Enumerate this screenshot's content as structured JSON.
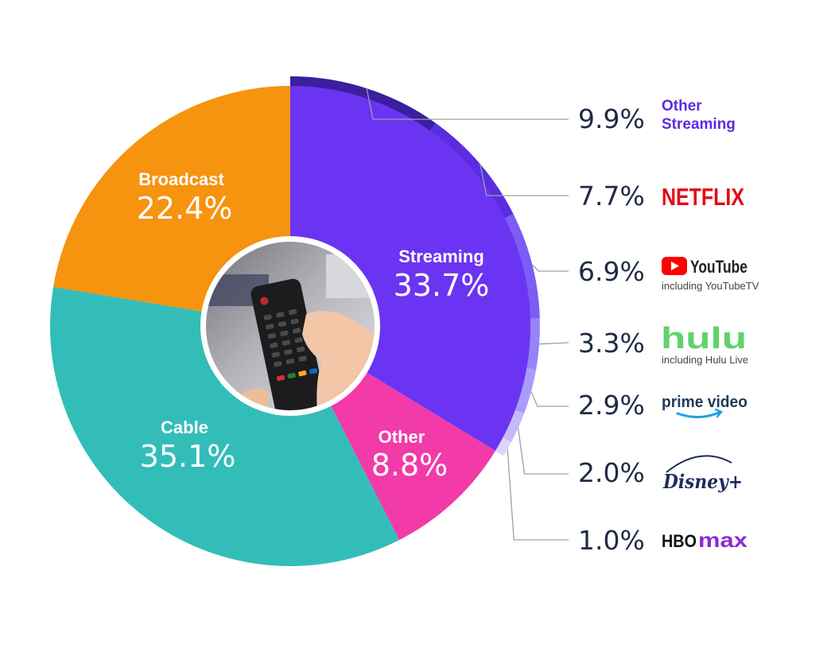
{
  "chart_data": {
    "type": "pie",
    "categories": [
      "Streaming",
      "Other",
      "Cable",
      "Broadcast"
    ],
    "values": [
      33.7,
      8.8,
      35.1,
      22.4
    ],
    "labels": [
      "33.7%",
      "8.8%",
      "35.1%",
      "22.4%"
    ],
    "colors": [
      "#6b34f2",
      "#f23aa8",
      "#33bdb9",
      "#f6930f"
    ],
    "donut": true,
    "breakdown": {
      "of": "Streaming",
      "categories": [
        "Other Streaming",
        "Netflix",
        "YouTube",
        "Hulu",
        "Prime Video",
        "Disney+",
        "HBO Max"
      ],
      "values": [
        9.9,
        7.7,
        6.9,
        3.3,
        2.9,
        2.0,
        1.0
      ],
      "labels": [
        "9.9%",
        "7.7%",
        "6.9%",
        "3.3%",
        "2.9%",
        "2.0%",
        "1.0%"
      ],
      "colors": [
        "#3a1f9e",
        "#5a2ee0",
        "#7b5cf6",
        "#9683f8",
        "#a89cf9",
        "#c4baf9",
        "#ddd6fb"
      ]
    },
    "legend": {
      "other_streaming_line1": "Other",
      "other_streaming_line2": "Streaming",
      "netflix": "NETFLIX",
      "youtube": "YouTube",
      "youtube_sub": "including YouTubeTV",
      "hulu": "hulu",
      "hulu_sub": "including Hulu Live",
      "prime": "prime video",
      "disney": "Disney+",
      "hbo_a": "HBO",
      "hbo_b": "max"
    },
    "center_image": "tv-remote-photo",
    "icons": [
      "youtube-play-icon",
      "amazon-smile-icon"
    ]
  }
}
